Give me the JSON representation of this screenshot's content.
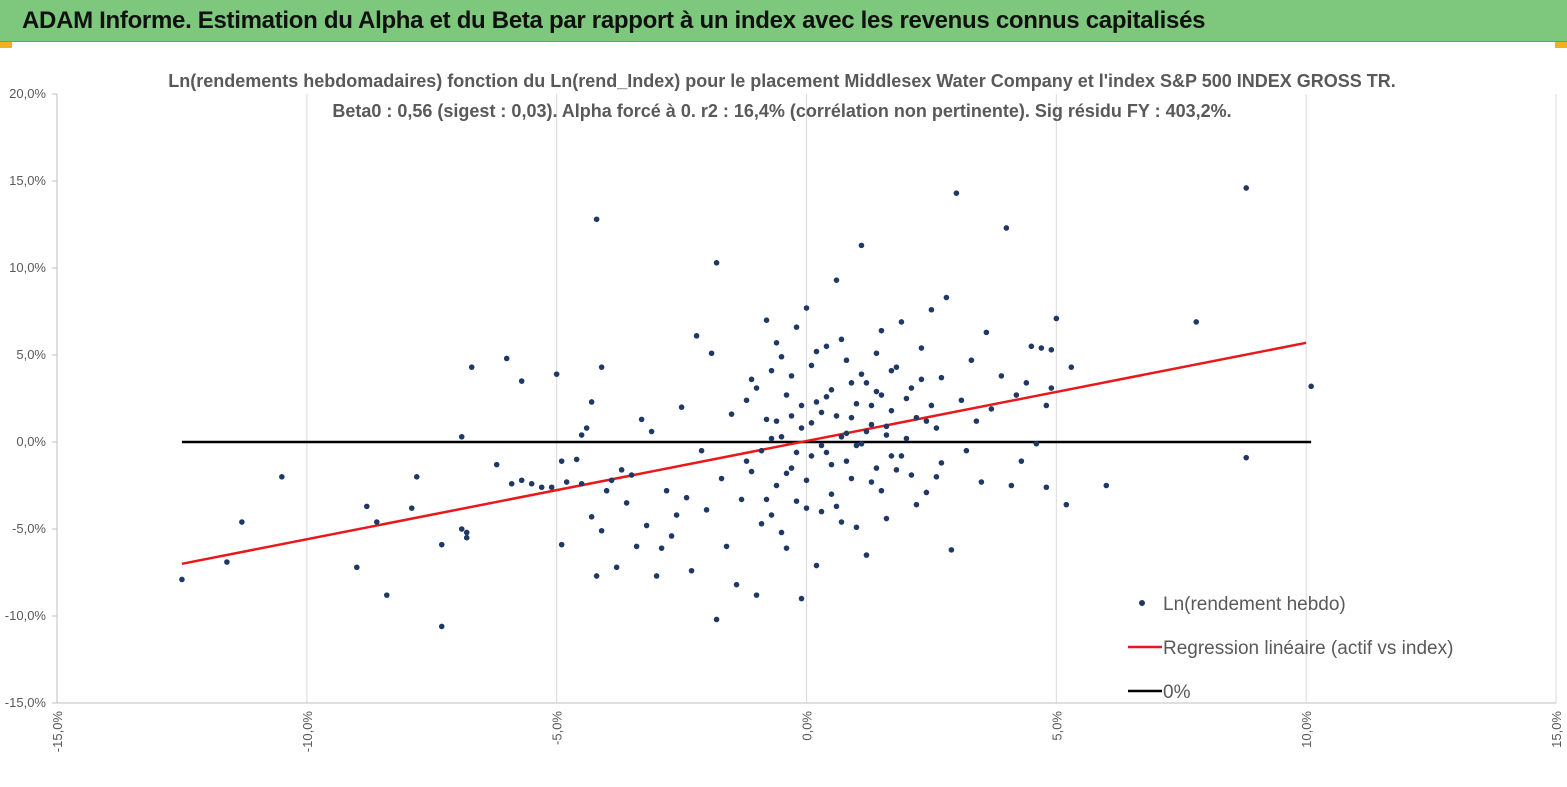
{
  "header": {
    "title": "ADAM Informe. Estimation du Alpha et du Beta par rapport à un index avec les revenus connus capitalisés"
  },
  "colors": {
    "banner": "#7ec87e",
    "points": "#1f3864",
    "regression": "#e8191b",
    "zero_line": "#000000",
    "text": "#595959"
  },
  "chart_data": {
    "type": "scatter",
    "title_line1": "Ln(rendements hebdomadaires) fonction du Ln(rend_Index) pour le placement Middlesex Water Company et l'index S&P 500 INDEX GROSS TR.",
    "title_line2": "Beta0 : 0,56 (sigest : 0,03). Alpha forcé à 0. r2 : 16,4% (corrélation non pertinente). Sig résidu FY : 403,2%.",
    "xlim": [
      -0.15,
      0.15
    ],
    "ylim": [
      -0.15,
      0.2
    ],
    "x_ticks": [
      -0.15,
      -0.1,
      -0.05,
      0.0,
      0.05,
      0.1,
      0.15
    ],
    "x_tick_labels": [
      "-15,0%",
      "-10,0%",
      "-5,0%",
      "0,0%",
      "5,0%",
      "10,0%",
      "15,0%"
    ],
    "y_ticks": [
      -0.15,
      -0.1,
      -0.05,
      0.0,
      0.05,
      0.1,
      0.15,
      0.2
    ],
    "y_tick_labels": [
      "-15,0%",
      "-10,0%",
      "-5,0%",
      "0,0%",
      "5,0%",
      "10,0%",
      "15,0%",
      "20,0%"
    ],
    "grid": "vertical",
    "legend_position": "bottom-right",
    "legend": [
      {
        "label": "Ln(rendement hebdo)",
        "kind": "marker"
      },
      {
        "label": "Regression linéaire (actif vs index)",
        "kind": "red-line"
      },
      {
        "label": "0%",
        "kind": "black-line"
      }
    ],
    "series": [
      {
        "name": "Ln(rendement hebdo)",
        "style": "points",
        "points": [
          [
            -0.125,
            -0.079
          ],
          [
            -0.116,
            -0.069
          ],
          [
            -0.113,
            -0.046
          ],
          [
            -0.105,
            -0.02
          ],
          [
            -0.09,
            -0.072
          ],
          [
            -0.088,
            -0.037
          ],
          [
            -0.086,
            -0.046
          ],
          [
            -0.084,
            -0.088
          ],
          [
            -0.079,
            -0.038
          ],
          [
            -0.078,
            -0.02
          ],
          [
            -0.073,
            -0.059
          ],
          [
            -0.073,
            -0.106
          ],
          [
            -0.069,
            -0.05
          ],
          [
            -0.068,
            -0.052
          ],
          [
            -0.068,
            -0.055
          ],
          [
            -0.069,
            0.003
          ],
          [
            -0.067,
            0.043
          ],
          [
            -0.062,
            -0.013
          ],
          [
            -0.06,
            0.048
          ],
          [
            -0.059,
            -0.024
          ],
          [
            -0.057,
            0.035
          ],
          [
            -0.057,
            -0.022
          ],
          [
            -0.055,
            -0.024
          ],
          [
            -0.053,
            -0.026
          ],
          [
            -0.051,
            -0.026
          ],
          [
            -0.05,
            0.039
          ],
          [
            -0.049,
            -0.059
          ],
          [
            -0.049,
            -0.011
          ],
          [
            -0.048,
            -0.023
          ],
          [
            -0.046,
            -0.01
          ],
          [
            -0.045,
            -0.024
          ],
          [
            -0.045,
            0.004
          ],
          [
            -0.044,
            0.008
          ],
          [
            -0.043,
            -0.043
          ],
          [
            -0.043,
            0.023
          ],
          [
            -0.042,
            -0.077
          ],
          [
            -0.041,
            -0.051
          ],
          [
            -0.04,
            -0.028
          ],
          [
            -0.039,
            -0.022
          ],
          [
            -0.042,
            0.128
          ],
          [
            -0.041,
            0.043
          ],
          [
            -0.038,
            -0.072
          ],
          [
            -0.037,
            -0.016
          ],
          [
            -0.036,
            -0.035
          ],
          [
            -0.035,
            -0.019
          ],
          [
            -0.034,
            -0.06
          ],
          [
            -0.033,
            0.013
          ],
          [
            -0.032,
            -0.048
          ],
          [
            -0.031,
            0.006
          ],
          [
            -0.03,
            -0.077
          ],
          [
            -0.029,
            -0.061
          ],
          [
            -0.028,
            -0.028
          ],
          [
            -0.027,
            -0.054
          ],
          [
            -0.026,
            -0.042
          ],
          [
            -0.025,
            0.02
          ],
          [
            -0.024,
            -0.032
          ],
          [
            -0.023,
            -0.074
          ],
          [
            -0.022,
            0.061
          ],
          [
            -0.021,
            -0.005
          ],
          [
            -0.02,
            -0.039
          ],
          [
            -0.019,
            0.051
          ],
          [
            -0.018,
            -0.102
          ],
          [
            -0.018,
            0.103
          ],
          [
            -0.017,
            -0.021
          ],
          [
            -0.016,
            -0.06
          ],
          [
            -0.015,
            0.016
          ],
          [
            -0.014,
            -0.082
          ],
          [
            -0.013,
            -0.033
          ],
          [
            -0.012,
            -0.011
          ],
          [
            -0.011,
            0.036
          ],
          [
            -0.01,
            -0.088
          ],
          [
            -0.009,
            -0.047
          ],
          [
            -0.008,
            0.07
          ],
          [
            -0.007,
            0.002
          ],
          [
            -0.006,
            -0.025
          ],
          [
            -0.005,
            0.049
          ],
          [
            -0.004,
            -0.061
          ],
          [
            -0.003,
            0.015
          ],
          [
            -0.002,
            -0.034
          ],
          [
            -0.001,
            -0.09
          ],
          [
            0.0,
            0.077
          ],
          [
            0.001,
            -0.008
          ],
          [
            0.002,
            0.023
          ],
          [
            0.003,
            -0.04
          ],
          [
            0.004,
            0.055
          ],
          [
            0.005,
            -0.013
          ],
          [
            0.006,
            0.093
          ],
          [
            0.007,
            -0.046
          ],
          [
            0.008,
            0.005
          ],
          [
            0.009,
            0.034
          ],
          [
            0.01,
            -0.002
          ],
          [
            0.011,
            0.113
          ],
          [
            0.012,
            -0.065
          ],
          [
            0.013,
            0.021
          ],
          [
            0.014,
            0.051
          ],
          [
            0.015,
            -0.028
          ],
          [
            0.016,
            0.009
          ],
          [
            0.017,
            0.041
          ],
          [
            0.018,
            -0.016
          ],
          [
            0.019,
            0.069
          ],
          [
            0.02,
            0.002
          ],
          [
            0.021,
            0.031
          ],
          [
            0.022,
            -0.036
          ],
          [
            0.023,
            0.054
          ],
          [
            0.024,
            0.012
          ],
          [
            0.025,
            0.076
          ],
          [
            0.026,
            -0.02
          ],
          [
            0.027,
            0.037
          ],
          [
            0.028,
            0.083
          ],
          [
            0.029,
            -0.062
          ],
          [
            0.03,
            0.143
          ],
          [
            0.031,
            0.024
          ],
          [
            0.032,
            -0.005
          ],
          [
            0.033,
            0.047
          ],
          [
            0.034,
            0.012
          ],
          [
            0.035,
            -0.023
          ],
          [
            0.036,
            0.063
          ],
          [
            0.037,
            0.019
          ],
          [
            0.039,
            0.038
          ],
          [
            0.04,
            0.123
          ],
          [
            0.041,
            -0.025
          ],
          [
            0.042,
            0.027
          ],
          [
            0.043,
            -0.011
          ],
          [
            0.044,
            0.034
          ],
          [
            0.045,
            0.055
          ],
          [
            0.046,
            -0.001
          ],
          [
            0.047,
            0.054
          ],
          [
            0.048,
            0.021
          ],
          [
            0.048,
            -0.026
          ],
          [
            0.049,
            0.053
          ],
          [
            0.049,
            0.031
          ],
          [
            0.05,
            0.071
          ],
          [
            0.052,
            -0.036
          ],
          [
            0.053,
            0.043
          ],
          [
            0.06,
            -0.025
          ],
          [
            0.078,
            0.069
          ],
          [
            0.088,
            -0.009
          ],
          [
            0.088,
            0.146
          ],
          [
            0.101,
            0.032
          ],
          [
            -0.008,
            -0.033
          ],
          [
            -0.007,
            0.041
          ],
          [
            -0.006,
            0.012
          ],
          [
            -0.005,
            -0.052
          ],
          [
            -0.004,
            0.027
          ],
          [
            -0.003,
            -0.015
          ],
          [
            -0.002,
            0.066
          ],
          [
            -0.001,
            0.008
          ],
          [
            0.0,
            -0.022
          ],
          [
            0.001,
            0.044
          ],
          [
            0.002,
            -0.071
          ],
          [
            0.003,
            0.017
          ],
          [
            0.004,
            -0.006
          ],
          [
            0.005,
            0.03
          ],
          [
            0.006,
            -0.037
          ],
          [
            0.007,
            0.059
          ],
          [
            0.008,
            -0.011
          ],
          [
            0.009,
            0.014
          ],
          [
            0.01,
            -0.049
          ],
          [
            0.011,
            0.039
          ],
          [
            0.012,
            0.006
          ],
          [
            0.013,
            -0.023
          ],
          [
            0.014,
            0.029
          ],
          [
            0.015,
            0.064
          ],
          [
            0.016,
            -0.044
          ],
          [
            0.017,
            0.018
          ],
          [
            0.018,
            0.043
          ],
          [
            0.019,
            -0.008
          ],
          [
            0.02,
            0.025
          ],
          [
            0.021,
            -0.019
          ],
          [
            0.022,
            0.014
          ],
          [
            0.023,
            0.036
          ],
          [
            0.024,
            -0.029
          ],
          [
            0.025,
            0.021
          ],
          [
            0.026,
            0.008
          ],
          [
            0.027,
            -0.012
          ],
          [
            -0.012,
            0.024
          ],
          [
            -0.011,
            -0.017
          ],
          [
            -0.01,
            0.031
          ],
          [
            -0.009,
            -0.005
          ],
          [
            -0.008,
            0.013
          ],
          [
            -0.007,
            -0.042
          ],
          [
            -0.006,
            0.057
          ],
          [
            -0.005,
            0.003
          ],
          [
            -0.004,
            -0.018
          ],
          [
            -0.003,
            0.038
          ],
          [
            -0.002,
            -0.006
          ],
          [
            -0.001,
            0.021
          ],
          [
            0.0,
            -0.038
          ],
          [
            0.001,
            0.011
          ],
          [
            0.002,
            0.052
          ],
          [
            0.003,
            -0.002
          ],
          [
            0.004,
            0.026
          ],
          [
            0.005,
            -0.03
          ],
          [
            0.006,
            0.015
          ],
          [
            0.007,
            0.003
          ],
          [
            0.008,
            0.047
          ],
          [
            0.009,
            -0.021
          ],
          [
            0.01,
            0.022
          ],
          [
            0.011,
            -0.001
          ],
          [
            0.012,
            0.034
          ],
          [
            0.013,
            0.01
          ],
          [
            0.014,
            -0.015
          ],
          [
            0.015,
            0.027
          ],
          [
            0.016,
            0.004
          ],
          [
            0.017,
            -0.008
          ]
        ]
      },
      {
        "name": "Regression linéaire (actif vs index)",
        "style": "line",
        "points": [
          [
            -0.125,
            -0.07
          ],
          [
            0.1,
            0.057
          ]
        ]
      },
      {
        "name": "0%",
        "style": "line",
        "points": [
          [
            -0.125,
            0.0
          ],
          [
            0.101,
            0.0
          ]
        ]
      }
    ]
  }
}
